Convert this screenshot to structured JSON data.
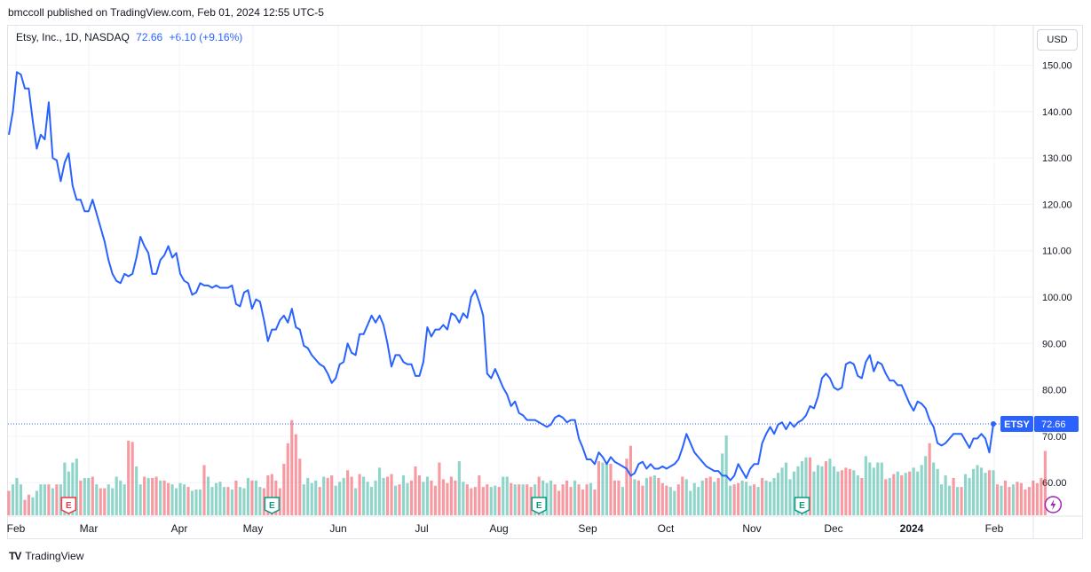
{
  "header": {
    "publisher": "bmccoll published on TradingView.com, Feb 01, 2024 12:55 UTC-5"
  },
  "legend": {
    "symbol": "Etsy, Inc., 1D, NASDAQ",
    "last": "72.66",
    "change": "+6.10 (+9.16%)"
  },
  "currency_button": "USD",
  "footer": {
    "brand": "TradingView",
    "logo": "TV"
  },
  "colors": {
    "line": "#2962ff",
    "vol_up": "#22ab94",
    "vol_down": "#f23645",
    "grid": "#f0f3fa"
  },
  "chart_data": {
    "type": "line",
    "ticker": "ETSY",
    "last_price": 72.66,
    "ylim": [
      50,
      155
    ],
    "y_ticks": [
      "150.00",
      "140.00",
      "130.00",
      "120.00",
      "110.00",
      "100.00",
      "90.00",
      "80.00",
      "70.00",
      "60.00"
    ],
    "x_ticks": [
      "Feb",
      "Mar",
      "Apr",
      "May",
      "Jun",
      "Jul",
      "Aug",
      "Sep",
      "Oct",
      "Nov",
      "Dec",
      "2024",
      "Feb"
    ],
    "price_series": {
      "name": "ETSY",
      "values": [
        135,
        140,
        148.5,
        148,
        145,
        145,
        138,
        132,
        135,
        134,
        142,
        130,
        129.5,
        125,
        129,
        131,
        124,
        121,
        121,
        118.5,
        118.5,
        121,
        118,
        115,
        112,
        108,
        105,
        103.5,
        103,
        105,
        104.5,
        105,
        108.5,
        113,
        111,
        109.5,
        105,
        105,
        108,
        109,
        111,
        108.5,
        109.5,
        105,
        103.5,
        103,
        100.5,
        101,
        103,
        102.5,
        102.5,
        102,
        102.5,
        102,
        102,
        102,
        102.5,
        98.5,
        98,
        101,
        101.5,
        97.5,
        99.5,
        99,
        95,
        90.5,
        93,
        93,
        95,
        96,
        94.5,
        97.5,
        93.5,
        93,
        89.5,
        89,
        87.5,
        86.5,
        85.5,
        85,
        83.5,
        81.5,
        82.5,
        85.5,
        86,
        90,
        88,
        87.5,
        92,
        92,
        94,
        96,
        94.5,
        96,
        94,
        90,
        85,
        87.5,
        87.5,
        86,
        85.5,
        85.5,
        83,
        83,
        86,
        93.5,
        91.5,
        93,
        93,
        94,
        93,
        96.5,
        96,
        94.5,
        96.5,
        95.5,
        100,
        101.5,
        99,
        96,
        83.5,
        82.5,
        84.5,
        82.5,
        80.5,
        79,
        76.5,
        77.5,
        75,
        74.5,
        73.5,
        73.5,
        73.5,
        73,
        72.5,
        72,
        72.5,
        74,
        74.5,
        74,
        73,
        73.5,
        73.5,
        69.5,
        67.5,
        65,
        65,
        64,
        66.5,
        65.5,
        64,
        65.5,
        64.5,
        64,
        63.5,
        63,
        61.5,
        62,
        64,
        64.5,
        63,
        64,
        63,
        63,
        63.5,
        63,
        63.5,
        64,
        65,
        67.5,
        70.5,
        68.5,
        66.5,
        65.5,
        64.5,
        63.5,
        63,
        62.5,
        62.5,
        61.5,
        61.5,
        60.5,
        61.5,
        64,
        62.5,
        61,
        63,
        64,
        64,
        68.5,
        70.5,
        72,
        70.5,
        72.5,
        73,
        71.5,
        73,
        72,
        73,
        73.5,
        74.5,
        76.5,
        76,
        78.5,
        82.5,
        83.5,
        82.5,
        80.5,
        80,
        80.5,
        85.5,
        86,
        85.5,
        83,
        82.5,
        86,
        87.5,
        84,
        86,
        85.5,
        83.5,
        82,
        82,
        81,
        81,
        79,
        77,
        75.5,
        77.5,
        77,
        76,
        73.5,
        72,
        68.5,
        68,
        68.5,
        69.5,
        70.5,
        70.5,
        70.5,
        69,
        67.5,
        69.5,
        69.5,
        70.5,
        69.5,
        66.5,
        72.66
      ]
    },
    "volume_series": {
      "name": "Volume",
      "heights": [
        0.19,
        0.24,
        0.29,
        0.24,
        0.12,
        0.16,
        0.14,
        0.19,
        0.24,
        0.24,
        0.24,
        0.21,
        0.24,
        0.24,
        0.41,
        0.34,
        0.41,
        0.44,
        0.27,
        0.29,
        0.29,
        0.3,
        0.24,
        0.21,
        0.21,
        0.24,
        0.21,
        0.3,
        0.27,
        0.24,
        0.58,
        0.57,
        0.38,
        0.24,
        0.3,
        0.29,
        0.29,
        0.3,
        0.27,
        0.27,
        0.25,
        0.24,
        0.21,
        0.25,
        0.24,
        0.22,
        0.19,
        0.2,
        0.2,
        0.39,
        0.3,
        0.22,
        0.25,
        0.26,
        0.22,
        0.22,
        0.2,
        0.27,
        0.22,
        0.21,
        0.29,
        0.27,
        0.27,
        0.22,
        0.21,
        0.31,
        0.32,
        0.27,
        0.21,
        0.4,
        0.56,
        0.74,
        0.63,
        0.44,
        0.24,
        0.29,
        0.25,
        0.27,
        0.22,
        0.3,
        0.29,
        0.31,
        0.23,
        0.26,
        0.29,
        0.35,
        0.3,
        0.21,
        0.32,
        0.3,
        0.26,
        0.22,
        0.27,
        0.37,
        0.29,
        0.3,
        0.32,
        0.23,
        0.24,
        0.31,
        0.25,
        0.27,
        0.38,
        0.31,
        0.26,
        0.3,
        0.27,
        0.23,
        0.41,
        0.28,
        0.25,
        0.3,
        0.27,
        0.42,
        0.26,
        0.24,
        0.21,
        0.22,
        0.31,
        0.22,
        0.24,
        0.22,
        0.23,
        0.22,
        0.3,
        0.3,
        0.25,
        0.24,
        0.24,
        0.24,
        0.24,
        0.22,
        0.24,
        0.3,
        0.27,
        0.25,
        0.27,
        0.24,
        0.19,
        0.24,
        0.27,
        0.22,
        0.27,
        0.24,
        0.2,
        0.24,
        0.25,
        0.2,
        0.42,
        0.41,
        0.41,
        0.4,
        0.27,
        0.27,
        0.22,
        0.44,
        0.54,
        0.28,
        0.27,
        0.23,
        0.29,
        0.3,
        0.31,
        0.29,
        0.25,
        0.23,
        0.22,
        0.19,
        0.24,
        0.3,
        0.28,
        0.19,
        0.25,
        0.22,
        0.27,
        0.29,
        0.3,
        0.26,
        0.29,
        0.48,
        0.62,
        0.23,
        0.24,
        0.25,
        0.27,
        0.26,
        0.23,
        0.24,
        0.22,
        0.29,
        0.27,
        0.26,
        0.29,
        0.33,
        0.37,
        0.41,
        0.28,
        0.34,
        0.38,
        0.42,
        0.45,
        0.45,
        0.34,
        0.39,
        0.38,
        0.42,
        0.44,
        0.38,
        0.34,
        0.35,
        0.37,
        0.36,
        0.35,
        0.31,
        0.29,
        0.46,
        0.41,
        0.37,
        0.41,
        0.41,
        0.28,
        0.29,
        0.32,
        0.34,
        0.31,
        0.33,
        0.34,
        0.37,
        0.34,
        0.39,
        0.46,
        0.56,
        0.41,
        0.36,
        0.24,
        0.31,
        0.23,
        0.29,
        0.22,
        0.22,
        0.32,
        0.29,
        0.36,
        0.39,
        0.37,
        0.33,
        0.35,
        0.35,
        0.24,
        0.23,
        0.27,
        0.22,
        0.24,
        0.26,
        0.25,
        0.2,
        0.22,
        0.27,
        0.25,
        0.29,
        0.5
      ],
      "up": [
        0,
        1,
        1,
        1,
        0,
        0,
        1,
        1,
        1,
        1,
        0,
        1,
        0,
        1,
        1,
        1,
        1,
        1,
        0,
        1,
        1,
        0,
        1,
        0,
        0,
        1,
        1,
        1,
        1,
        1,
        0,
        0,
        1,
        1,
        0,
        1,
        0,
        0,
        1,
        0,
        0,
        1,
        1,
        1,
        1,
        0,
        1,
        1,
        1,
        0,
        1,
        1,
        1,
        1,
        1,
        0,
        1,
        0,
        1,
        1,
        1,
        0,
        1,
        1,
        0,
        0,
        0,
        0,
        0,
        0,
        0,
        0,
        0,
        0,
        1,
        1,
        1,
        1,
        0,
        1,
        0,
        0,
        1,
        1,
        1,
        0,
        0,
        1,
        0,
        1,
        1,
        1,
        1,
        1,
        1,
        0,
        0,
        1,
        0,
        1,
        1,
        0,
        0,
        0,
        1,
        1,
        0,
        0,
        0,
        0,
        0,
        0,
        0,
        1,
        1,
        0,
        0,
        0,
        0,
        0,
        0,
        1,
        1,
        0,
        1,
        1,
        0,
        1,
        0,
        1,
        0,
        0,
        1,
        0,
        1,
        1,
        1,
        0,
        0,
        0,
        0,
        0,
        1,
        0,
        0,
        0,
        1,
        0,
        0,
        1,
        1,
        0,
        0,
        0,
        1,
        0,
        0,
        1,
        0,
        0,
        1,
        0,
        1,
        0,
        0,
        0,
        1,
        1,
        0,
        0,
        1,
        1,
        1,
        1,
        1,
        0,
        0,
        1,
        0,
        1,
        1,
        1,
        0,
        0,
        1,
        1,
        1,
        0,
        1,
        0,
        1,
        1,
        1,
        1,
        1,
        1,
        1,
        1,
        1,
        1,
        1,
        0,
        1,
        1,
        1,
        0,
        1,
        1,
        1,
        0,
        0,
        0,
        1,
        1,
        0,
        1,
        1,
        1,
        1,
        1,
        0,
        1,
        0,
        1,
        0,
        1,
        0,
        1,
        1,
        1,
        1,
        0,
        1,
        1,
        1,
        1,
        1,
        0,
        1,
        0,
        1,
        1,
        1,
        1,
        1,
        1,
        0,
        1,
        0,
        1,
        0,
        0,
        1
      ]
    },
    "earnings_markers": [
      {
        "label": "E",
        "index": 15,
        "color": "#f23645"
      },
      {
        "label": "E",
        "index": 66,
        "color": "#089981"
      },
      {
        "label": "E",
        "index": 133,
        "color": "#089981"
      },
      {
        "label": "E",
        "index": 199,
        "color": "#089981"
      }
    ],
    "dividend_marker": {
      "index": 262,
      "color": "#9c27b0"
    }
  }
}
